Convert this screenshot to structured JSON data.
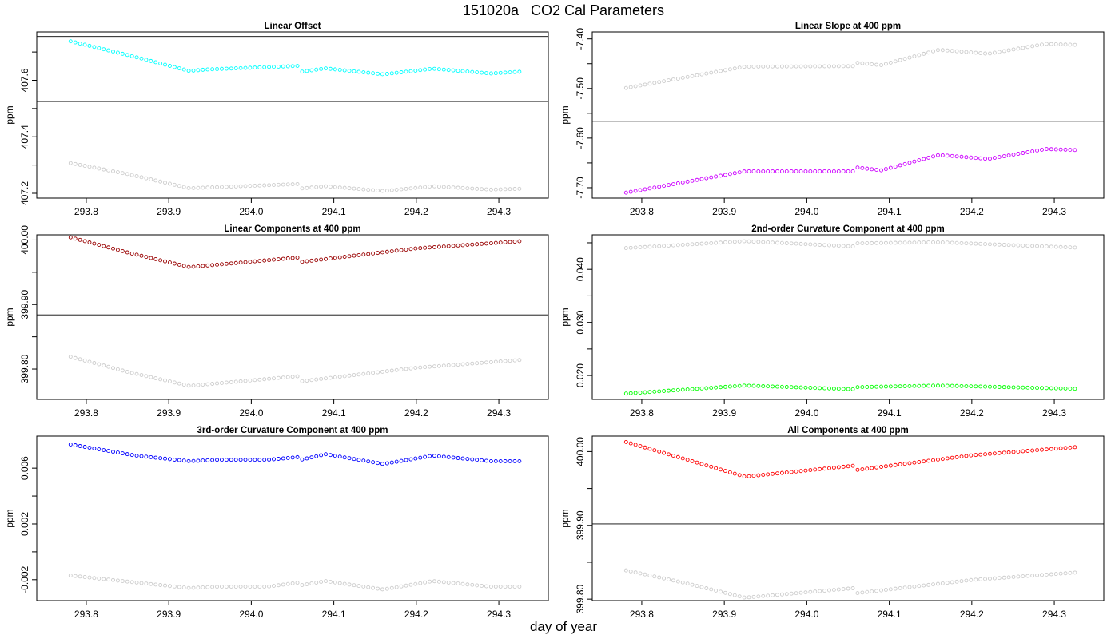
{
  "figure": {
    "title": "151020a   CO2 Cal Parameters",
    "xlabel": "day of year"
  },
  "chart_data": [
    {
      "type": "scatter",
      "title": "Linear Offset",
      "xlabel": "",
      "ylabel": "ppm",
      "xlim": [
        293.74,
        294.36
      ],
      "ylim": [
        407.183,
        407.771
      ],
      "xticks": [
        293.8,
        293.9,
        294.0,
        294.1,
        294.2,
        294.3
      ],
      "xticklabels": [
        "293.8",
        "293.9",
        "294.0",
        "294.1",
        "294.2",
        "294.3"
      ],
      "yticks": [
        407.2,
        407.3,
        407.4,
        407.5,
        407.6,
        407.7
      ],
      "yticklabels": [
        "407.2",
        "",
        "407.4",
        "",
        "407.6",
        ""
      ],
      "hlines": [
        407.525,
        407.755
      ],
      "series": [
        {
          "color": "#00ffff",
          "x_start": 293.781,
          "x_end": 294.325,
          "n": 96,
          "knots": [
            [
              293.781,
              407.738
            ],
            [
              293.852,
              407.688
            ],
            [
              293.925,
              407.633
            ],
            [
              293.945,
              407.638
            ],
            [
              294.058,
              407.651
            ],
            [
              294.06,
              407.63
            ],
            [
              294.09,
              407.642
            ],
            [
              294.16,
              407.621
            ],
            [
              294.22,
              407.641
            ],
            [
              294.29,
              407.624
            ],
            [
              294.325,
              407.63
            ]
          ]
        },
        {
          "color": "#cccccc",
          "x_start": 293.781,
          "x_end": 294.325,
          "n": 96,
          "knots": [
            [
              293.781,
              407.307
            ],
            [
              293.852,
              407.267
            ],
            [
              293.925,
              407.218
            ],
            [
              294.058,
              407.233
            ],
            [
              294.06,
              407.217
            ],
            [
              294.09,
              407.225
            ],
            [
              294.16,
              407.208
            ],
            [
              294.22,
              407.225
            ],
            [
              294.29,
              407.213
            ],
            [
              294.325,
              407.216
            ]
          ]
        }
      ]
    },
    {
      "type": "scatter",
      "title": "Linear Slope at 400 ppm",
      "xlabel": "",
      "ylabel": "ppm",
      "xlim": [
        293.74,
        294.36
      ],
      "ylim": [
        -7.721,
        -7.386
      ],
      "xticks": [
        293.8,
        293.9,
        294.0,
        294.1,
        294.2,
        294.3
      ],
      "xticklabels": [
        "293.8",
        "293.9",
        "294.0",
        "294.1",
        "294.2",
        "294.3"
      ],
      "yticks": [
        -7.7,
        -7.65,
        -7.6,
        -7.55,
        -7.5,
        -7.45,
        -7.4
      ],
      "yticklabels": [
        "-7.70",
        "",
        "-7.60",
        "",
        "-7.50",
        "",
        "-7.40"
      ],
      "hlines": [
        -7.566
      ],
      "series": [
        {
          "color": "#cc00ff",
          "x_start": 293.781,
          "x_end": 294.325,
          "n": 96,
          "knots": [
            [
              293.781,
              -7.71
            ],
            [
              293.925,
              -7.667
            ],
            [
              294.058,
              -7.667
            ],
            [
              294.06,
              -7.659
            ],
            [
              294.09,
              -7.665
            ],
            [
              294.16,
              -7.634
            ],
            [
              294.22,
              -7.642
            ],
            [
              294.29,
              -7.622
            ],
            [
              294.325,
              -7.624
            ]
          ]
        },
        {
          "color": "#cccccc",
          "x_start": 293.781,
          "x_end": 294.325,
          "n": 96,
          "knots": [
            [
              293.781,
              -7.499
            ],
            [
              293.925,
              -7.456
            ],
            [
              294.058,
              -7.455
            ],
            [
              294.06,
              -7.448
            ],
            [
              294.09,
              -7.453
            ],
            [
              294.16,
              -7.422
            ],
            [
              294.22,
              -7.43
            ],
            [
              294.29,
              -7.41
            ],
            [
              294.325,
              -7.412
            ]
          ]
        }
      ]
    },
    {
      "type": "scatter",
      "title": "Linear Components at 400 ppm",
      "xlabel": "",
      "ylabel": "ppm",
      "xlim": [
        293.74,
        294.36
      ],
      "ylim": [
        399.753,
        400.008
      ],
      "xticks": [
        293.8,
        293.9,
        294.0,
        294.1,
        294.2,
        294.3
      ],
      "xticklabels": [
        "293.8",
        "293.9",
        "294.0",
        "294.1",
        "294.2",
        "294.3"
      ],
      "yticks": [
        399.8,
        399.85,
        399.9,
        399.95,
        400.0
      ],
      "yticklabels": [
        "399.80",
        "",
        "399.90",
        "",
        "400.00"
      ],
      "hlines": [
        399.884
      ],
      "series": [
        {
          "color": "#990000",
          "x_start": 293.781,
          "x_end": 294.325,
          "n": 96,
          "knots": [
            [
              293.781,
              400.004
            ],
            [
              293.852,
              399.98
            ],
            [
              293.925,
              399.958
            ],
            [
              294.058,
              399.973
            ],
            [
              294.06,
              399.966
            ],
            [
              294.2,
              399.987
            ],
            [
              294.325,
              399.998
            ]
          ]
        },
        {
          "color": "#cccccc",
          "x_start": 293.781,
          "x_end": 294.325,
          "n": 96,
          "knots": [
            [
              293.781,
              399.819
            ],
            [
              293.852,
              399.795
            ],
            [
              293.925,
              399.774
            ],
            [
              294.058,
              399.789
            ],
            [
              294.06,
              399.781
            ],
            [
              294.2,
              399.802
            ],
            [
              294.325,
              399.814
            ]
          ]
        }
      ]
    },
    {
      "type": "scatter",
      "title": "2nd-order Curvature Component at 400 ppm",
      "xlabel": "",
      "ylabel": "ppm",
      "xlim": [
        293.74,
        294.36
      ],
      "ylim": [
        0.0155,
        0.0465
      ],
      "xticks": [
        293.8,
        293.9,
        294.0,
        294.1,
        294.2,
        294.3
      ],
      "xticklabels": [
        "293.8",
        "293.9",
        "294.0",
        "294.1",
        "294.2",
        "294.3"
      ],
      "yticks": [
        0.02,
        0.025,
        0.03,
        0.035,
        0.04,
        0.045
      ],
      "yticklabels": [
        "0.020",
        "",
        "0.030",
        "",
        "0.040",
        ""
      ],
      "hlines": [
        0.0155
      ],
      "series": [
        {
          "color": "#00ff00",
          "x_start": 293.781,
          "x_end": 294.325,
          "n": 96,
          "knots": [
            [
              293.781,
              0.0166
            ],
            [
              293.925,
              0.0181
            ],
            [
              294.058,
              0.0174
            ],
            [
              294.06,
              0.0178
            ],
            [
              294.16,
              0.0181
            ],
            [
              294.325,
              0.0175
            ]
          ]
        },
        {
          "color": "#cccccc",
          "x_start": 293.781,
          "x_end": 294.325,
          "n": 96,
          "knots": [
            [
              293.781,
              0.044
            ],
            [
              293.925,
              0.0453
            ],
            [
              294.058,
              0.0443
            ],
            [
              294.06,
              0.0449
            ],
            [
              294.16,
              0.0451
            ],
            [
              294.325,
              0.0441
            ]
          ]
        }
      ]
    },
    {
      "type": "scatter",
      "title": "3rd-order Curvature Component at 400 ppm",
      "xlabel": "",
      "ylabel": "ppm",
      "xlim": [
        293.74,
        294.36
      ],
      "ylim": [
        -0.0035,
        0.0083
      ],
      "xticks": [
        293.8,
        293.9,
        294.0,
        294.1,
        294.2,
        294.3
      ],
      "xticklabels": [
        "293.8",
        "293.9",
        "294.0",
        "294.1",
        "294.2",
        "294.3"
      ],
      "yticks": [
        -0.002,
        0.0,
        0.002,
        0.004,
        0.006
      ],
      "yticklabels": [
        "-0.002",
        "",
        "0.002",
        "",
        "0.006"
      ],
      "hlines": [],
      "series": [
        {
          "color": "#0000ff",
          "x_start": 293.781,
          "x_end": 294.325,
          "n": 96,
          "knots": [
            [
              293.781,
              0.0077
            ],
            [
              293.86,
              0.0069
            ],
            [
              293.925,
              0.0065
            ],
            [
              293.96,
              0.0066
            ],
            [
              294.02,
              0.0066
            ],
            [
              294.058,
              0.0068
            ],
            [
              294.06,
              0.0066
            ],
            [
              294.09,
              0.007
            ],
            [
              294.16,
              0.0063
            ],
            [
              294.22,
              0.0069
            ],
            [
              294.29,
              0.0065
            ],
            [
              294.325,
              0.0065
            ]
          ]
        },
        {
          "color": "#cccccc",
          "x_start": 293.781,
          "x_end": 294.325,
          "n": 96,
          "knots": [
            [
              293.781,
              -0.0017
            ],
            [
              293.86,
              -0.0022
            ],
            [
              293.925,
              -0.0026
            ],
            [
              293.96,
              -0.0025
            ],
            [
              294.02,
              -0.0025
            ],
            [
              294.058,
              -0.0022
            ],
            [
              294.06,
              -0.0024
            ],
            [
              294.09,
              -0.0021
            ],
            [
              294.16,
              -0.0027
            ],
            [
              294.22,
              -0.0021
            ],
            [
              294.29,
              -0.0025
            ],
            [
              294.325,
              -0.0025
            ]
          ]
        }
      ]
    },
    {
      "type": "scatter",
      "title": "All Components at 400 ppm",
      "xlabel": "",
      "ylabel": "ppm",
      "xlim": [
        293.74,
        294.36
      ],
      "ylim": [
        399.798,
        400.021
      ],
      "xticks": [
        293.8,
        293.9,
        294.0,
        294.1,
        294.2,
        294.3
      ],
      "xticklabels": [
        "293.8",
        "293.9",
        "294.0",
        "294.1",
        "294.2",
        "294.3"
      ],
      "yticks": [
        399.8,
        399.85,
        399.9,
        399.95,
        400.0
      ],
      "yticklabels": [
        "399.80",
        "",
        "399.90",
        "",
        "400.00"
      ],
      "hlines": [
        399.902
      ],
      "series": [
        {
          "color": "#ff0000",
          "x_start": 293.781,
          "x_end": 294.325,
          "n": 96,
          "knots": [
            [
              293.781,
              400.013
            ],
            [
              293.852,
              399.99
            ],
            [
              293.925,
              399.966
            ],
            [
              294.058,
              399.981
            ],
            [
              294.06,
              399.975
            ],
            [
              294.2,
              399.995
            ],
            [
              294.325,
              400.006
            ]
          ]
        },
        {
          "color": "#cccccc",
          "x_start": 293.781,
          "x_end": 294.325,
          "n": 96,
          "knots": [
            [
              293.781,
              399.839
            ],
            [
              293.852,
              399.822
            ],
            [
              293.925,
              399.802
            ],
            [
              294.058,
              399.815
            ],
            [
              294.06,
              399.808
            ],
            [
              294.2,
              399.826
            ],
            [
              294.325,
              399.836
            ]
          ]
        }
      ]
    }
  ]
}
